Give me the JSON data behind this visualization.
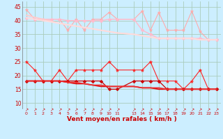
{
  "background_color": "#cceeff",
  "grid_color": "#aaccbb",
  "xlabel": "Vent moyen/en rafales ( km/h )",
  "xlabel_color": "#cc0000",
  "ylabel_ticks": [
    10,
    15,
    20,
    25,
    30,
    35,
    40,
    45
  ],
  "ylim": [
    8,
    47
  ],
  "x_positions": [
    0,
    1,
    2,
    3,
    4,
    5,
    6,
    7,
    8,
    9,
    10,
    11,
    13,
    14,
    15,
    16,
    17,
    18,
    19,
    20,
    21,
    22,
    23
  ],
  "x_labels": [
    "0",
    "1",
    "2",
    "3",
    "4",
    "5",
    "6",
    "7",
    "8",
    "9",
    "10",
    "11",
    "13",
    "14",
    "15",
    "16",
    "17",
    "18",
    "19",
    "20",
    "21",
    "22",
    "23"
  ],
  "series": [
    {
      "name": "rafales_jagged",
      "color": "#ffaaaa",
      "linewidth": 0.8,
      "marker": "*",
      "markersize": 3.5,
      "markeredgewidth": 0.3,
      "values": [
        44,
        40.5,
        40.5,
        40.5,
        40.5,
        36.5,
        40.5,
        36.5,
        40.5,
        40.5,
        43,
        40.5,
        40.5,
        43.5,
        36.5,
        43,
        36.5,
        36.5,
        36.5,
        43.5,
        36,
        33,
        33
      ]
    },
    {
      "name": "rafales_smooth1",
      "color": "#ffbbcc",
      "linewidth": 1.0,
      "marker": "D",
      "markersize": 2.5,
      "markeredgewidth": 0.3,
      "values": [
        41,
        40.5,
        40.5,
        40.5,
        40.5,
        40,
        40,
        40,
        40,
        40,
        40.5,
        40.5,
        40.5,
        36.5,
        35,
        33.5,
        33.5,
        33.5,
        33.5,
        33.5,
        33.5,
        33,
        33
      ]
    },
    {
      "name": "rafales_trend1",
      "color": "#ffcccc",
      "linewidth": 1.3,
      "marker": null,
      "markersize": 0,
      "markeredgewidth": 0,
      "values": [
        42,
        41.2,
        40.5,
        39.8,
        39,
        38.5,
        38,
        37.5,
        37,
        36.5,
        36,
        35.5,
        35,
        34.5,
        34,
        33.5,
        33.5,
        33.5,
        33.5,
        33.5,
        33,
        33,
        33
      ]
    },
    {
      "name": "rafales_trend2",
      "color": "#ffdddd",
      "linewidth": 1.3,
      "marker": null,
      "markersize": 0,
      "markeredgewidth": 0,
      "values": [
        41,
        40.5,
        40,
        39.5,
        39,
        38.5,
        38,
        37.5,
        37,
        36.5,
        36,
        35.5,
        35,
        34.5,
        34,
        33.5,
        33.5,
        33.5,
        33.5,
        33.5,
        33,
        33,
        33
      ]
    },
    {
      "name": "vent_jagged",
      "color": "#ff2222",
      "linewidth": 0.8,
      "marker": "*",
      "markersize": 3.5,
      "markeredgewidth": 0.3,
      "values": [
        25,
        22,
        18,
        18,
        22,
        18,
        22,
        22,
        22,
        22,
        25,
        22,
        22,
        22,
        25,
        18,
        18,
        18,
        15,
        18,
        22,
        15,
        15
      ]
    },
    {
      "name": "vent_smooth1",
      "color": "#cc0000",
      "linewidth": 0.9,
      "marker": "D",
      "markersize": 2.5,
      "markeredgewidth": 0.3,
      "values": [
        18,
        18,
        18,
        18,
        18,
        18,
        18,
        18,
        18,
        18,
        15,
        15,
        18,
        18,
        18,
        18,
        15,
        15,
        15,
        15,
        15,
        15,
        15
      ]
    },
    {
      "name": "vent_trend1",
      "color": "#dd0000",
      "linewidth": 1.2,
      "marker": null,
      "markersize": 0,
      "markeredgewidth": 0,
      "values": [
        18,
        18,
        18,
        18,
        18,
        17.5,
        17,
        17,
        16.5,
        16,
        16,
        16,
        16,
        15.5,
        15.5,
        15,
        15,
        15,
        15,
        15,
        15,
        15,
        15
      ]
    },
    {
      "name": "vent_trend2",
      "color": "#ee3333",
      "linewidth": 1.2,
      "marker": null,
      "markersize": 0,
      "markeredgewidth": 0,
      "values": [
        18,
        18,
        18,
        18,
        18,
        17.5,
        17.5,
        17,
        16.5,
        16.5,
        16,
        16,
        16,
        15.5,
        15.5,
        15.5,
        15,
        15,
        15,
        15,
        15,
        15,
        15
      ]
    }
  ]
}
